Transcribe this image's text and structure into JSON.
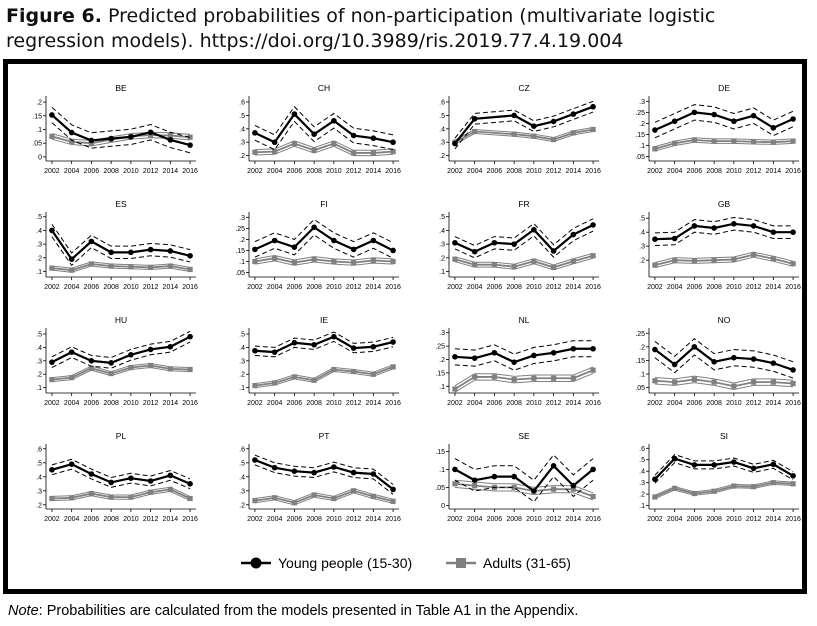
{
  "caption": {
    "label": "Figure 6.",
    "text": "Predicted probabilities of non-participation (multivariate logistic regression models). https://doi.org/10.3989/ris.2019.77.4.19.004"
  },
  "note": {
    "label": "Note",
    "text": ": Probabilities are calculated from the models presented in Table A1 in the Appendix."
  },
  "chart_data": {
    "type": "line",
    "x": [
      2002,
      2004,
      2006,
      2008,
      2010,
      2012,
      2014,
      2016
    ],
    "legend": [
      "Young people (15-30)",
      "Adults (31-65)"
    ],
    "legend_position": "bottom-center",
    "colors": {
      "young": "#000000",
      "adults": "#808080"
    },
    "panels": [
      {
        "title": "BE",
        "yticks": [
          0,
          0.05,
          0.1,
          0.15,
          0.2
        ],
        "yticklabels": [
          "0",
          ".05",
          ".1",
          ".15",
          ".2"
        ],
        "ylim": [
          -0.015,
          0.215
        ],
        "young": [
          0.153,
          0.089,
          0.06,
          0.067,
          0.073,
          0.09,
          0.062,
          0.043
        ],
        "young_ci": 0.028,
        "adults": [
          0.075,
          0.055,
          0.05,
          0.063,
          0.075,
          0.08,
          0.078,
          0.072
        ],
        "adults_ci": 0.01
      },
      {
        "title": "CH",
        "yticks": [
          0.2,
          0.3,
          0.4,
          0.5,
          0.6
        ],
        "yticklabels": [
          ".2",
          ".3",
          ".4",
          ".5",
          ".6"
        ],
        "ylim": [
          0.16,
          0.63
        ],
        "young": [
          0.37,
          0.3,
          0.51,
          0.36,
          0.46,
          0.35,
          0.33,
          0.3
        ],
        "young_ci": 0.055,
        "adults": [
          0.225,
          0.23,
          0.29,
          0.24,
          0.29,
          0.22,
          0.22,
          0.23
        ],
        "adults_ci": 0.02
      },
      {
        "title": "CZ",
        "yticks": [
          0.2,
          0.3,
          0.4,
          0.5,
          0.6
        ],
        "yticklabels": [
          ".2",
          ".3",
          ".4",
          ".5",
          ".6"
        ],
        "ylim": [
          0.16,
          0.63
        ],
        "x": [
          2002,
          2004,
          2008,
          2010,
          2012,
          2014,
          2016
        ],
        "young": [
          0.29,
          0.475,
          0.5,
          0.42,
          0.455,
          0.51,
          0.565
        ],
        "young_ci": 0.04,
        "adults": [
          0.3,
          0.38,
          0.36,
          0.345,
          0.32,
          0.37,
          0.395
        ],
        "adults_ci": 0.015
      },
      {
        "title": "DE",
        "yticks": [
          0.05,
          0.1,
          0.15,
          0.2,
          0.25,
          0.3
        ],
        "yticklabels": [
          ".05",
          ".1",
          ".15",
          ".2",
          ".25",
          ".3"
        ],
        "ylim": [
          0.03,
          0.315
        ],
        "young": [
          0.17,
          0.21,
          0.25,
          0.24,
          0.21,
          0.235,
          0.18,
          0.22
        ],
        "young_ci": 0.035,
        "adults": [
          0.085,
          0.11,
          0.125,
          0.12,
          0.12,
          0.117,
          0.115,
          0.12
        ],
        "adults_ci": 0.01
      },
      {
        "title": "ES",
        "yticks": [
          0.1,
          0.2,
          0.3,
          0.4,
          0.5
        ],
        "yticklabels": [
          ".1",
          ".2",
          ".3",
          ".4",
          ".5"
        ],
        "ylim": [
          0.06,
          0.52
        ],
        "young": [
          0.4,
          0.19,
          0.32,
          0.24,
          0.24,
          0.26,
          0.25,
          0.215
        ],
        "young_ci": 0.045,
        "adults": [
          0.125,
          0.11,
          0.155,
          0.14,
          0.135,
          0.13,
          0.14,
          0.115
        ],
        "adults_ci": 0.015
      },
      {
        "title": "FI",
        "yticks": [
          0.05,
          0.1,
          0.15,
          0.2,
          0.25,
          0.3
        ],
        "yticklabels": [
          ".05",
          ".1",
          ".15",
          ".2",
          ".25",
          ".3"
        ],
        "ylim": [
          0.03,
          0.315
        ],
        "young": [
          0.155,
          0.195,
          0.165,
          0.255,
          0.195,
          0.155,
          0.195,
          0.15
        ],
        "young_ci": 0.035,
        "adults": [
          0.1,
          0.115,
          0.095,
          0.11,
          0.1,
          0.095,
          0.105,
          0.1
        ],
        "adults_ci": 0.012
      },
      {
        "title": "FR",
        "yticks": [
          0.1,
          0.2,
          0.3,
          0.4,
          0.5
        ],
        "yticklabels": [
          ".1",
          ".2",
          ".3",
          ".4",
          ".5"
        ],
        "ylim": [
          0.06,
          0.52
        ],
        "young": [
          0.31,
          0.245,
          0.31,
          0.3,
          0.405,
          0.25,
          0.37,
          0.44
        ],
        "young_ci": 0.045,
        "adults": [
          0.19,
          0.15,
          0.15,
          0.135,
          0.175,
          0.13,
          0.175,
          0.215
        ],
        "adults_ci": 0.018
      },
      {
        "title": "GB",
        "yticks": [
          0.2,
          0.3,
          0.4,
          0.5
        ],
        "yticklabels": [
          ".2",
          ".3",
          ".4",
          ".5"
        ],
        "ylim": [
          0.08,
          0.53
        ],
        "young": [
          0.35,
          0.355,
          0.445,
          0.43,
          0.46,
          0.445,
          0.4,
          0.4
        ],
        "young_ci": 0.045,
        "adults": [
          0.165,
          0.2,
          0.195,
          0.2,
          0.205,
          0.24,
          0.21,
          0.175
        ],
        "adults_ci": 0.018
      },
      {
        "title": "HU",
        "yticks": [
          0.1,
          0.2,
          0.3,
          0.4,
          0.5
        ],
        "yticklabels": [
          ".1",
          ".2",
          ".3",
          ".4",
          ".5"
        ],
        "ylim": [
          0.06,
          0.53
        ],
        "young": [
          0.29,
          0.365,
          0.3,
          0.285,
          0.345,
          0.385,
          0.405,
          0.48
        ],
        "young_ci": 0.04,
        "adults": [
          0.16,
          0.175,
          0.245,
          0.205,
          0.25,
          0.265,
          0.24,
          0.235
        ],
        "adults_ci": 0.015
      },
      {
        "title": "IE",
        "yticks": [
          0.1,
          0.2,
          0.3,
          0.4,
          0.5
        ],
        "yticklabels": [
          ".1",
          ".2",
          ".3",
          ".4",
          ".5"
        ],
        "ylim": [
          0.06,
          0.53
        ],
        "young": [
          0.375,
          0.365,
          0.435,
          0.42,
          0.48,
          0.395,
          0.405,
          0.44
        ],
        "young_ci": 0.035,
        "adults": [
          0.115,
          0.135,
          0.18,
          0.155,
          0.235,
          0.22,
          0.2,
          0.255
        ],
        "adults_ci": 0.015
      },
      {
        "title": "NL",
        "yticks": [
          0.1,
          0.15,
          0.2,
          0.25,
          0.3
        ],
        "yticklabels": [
          ".1",
          ".15",
          ".2",
          ".25",
          ".3"
        ],
        "ylim": [
          0.075,
          0.31
        ],
        "young": [
          0.21,
          0.205,
          0.225,
          0.19,
          0.215,
          0.225,
          0.24,
          0.24
        ],
        "young_ci": 0.03,
        "adults": [
          0.09,
          0.135,
          0.135,
          0.125,
          0.13,
          0.13,
          0.13,
          0.16
        ],
        "adults_ci": 0.012
      },
      {
        "title": "NO",
        "yticks": [
          0.05,
          0.1,
          0.15,
          0.2,
          0.25
        ],
        "yticklabels": [
          ".05",
          ".1",
          ".15",
          ".2",
          ".25"
        ],
        "ylim": [
          0.03,
          0.262
        ],
        "young": [
          0.19,
          0.135,
          0.2,
          0.145,
          0.16,
          0.155,
          0.14,
          0.115
        ],
        "young_ci": 0.03,
        "adults": [
          0.075,
          0.07,
          0.08,
          0.07,
          0.055,
          0.07,
          0.07,
          0.065
        ],
        "adults_ci": 0.012
      },
      {
        "title": "PL",
        "yticks": [
          0.2,
          0.3,
          0.4,
          0.5,
          0.6
        ],
        "yticklabels": [
          ".2",
          ".3",
          ".4",
          ".5",
          ".6"
        ],
        "ylim": [
          0.17,
          0.62
        ],
        "young": [
          0.45,
          0.49,
          0.42,
          0.36,
          0.39,
          0.37,
          0.41,
          0.35
        ],
        "young_ci": 0.035,
        "adults": [
          0.245,
          0.25,
          0.28,
          0.255,
          0.255,
          0.29,
          0.31,
          0.245
        ],
        "adults_ci": 0.015
      },
      {
        "title": "PT",
        "yticks": [
          0.2,
          0.3,
          0.4,
          0.5,
          0.6
        ],
        "yticklabels": [
          ".2",
          ".3",
          ".4",
          ".5",
          ".6"
        ],
        "ylim": [
          0.17,
          0.62
        ],
        "young": [
          0.52,
          0.465,
          0.44,
          0.43,
          0.47,
          0.43,
          0.42,
          0.31
        ],
        "young_ci": 0.035,
        "adults": [
          0.23,
          0.25,
          0.215,
          0.27,
          0.245,
          0.3,
          0.26,
          0.225
        ],
        "adults_ci": 0.015
      },
      {
        "title": "SE",
        "yticks": [
          0,
          0.05,
          0.1,
          0.15
        ],
        "yticklabels": [
          "0",
          ".05",
          ".1",
          ".15"
        ],
        "ylim": [
          -0.01,
          0.165
        ],
        "young": [
          0.1,
          0.07,
          0.08,
          0.08,
          0.04,
          0.11,
          0.055,
          0.1
        ],
        "young_ci": 0.03,
        "adults": [
          0.06,
          0.055,
          0.05,
          0.05,
          0.04,
          0.045,
          0.045,
          0.025
        ],
        "adults_ci": 0.01
      },
      {
        "title": "SI",
        "yticks": [
          0.1,
          0.2,
          0.3,
          0.4,
          0.5,
          0.6
        ],
        "yticklabels": [
          ".1",
          ".2",
          ".3",
          ".4",
          ".5",
          ".6"
        ],
        "ylim": [
          0.07,
          0.62
        ],
        "young": [
          0.33,
          0.51,
          0.455,
          0.455,
          0.48,
          0.425,
          0.46,
          0.36
        ],
        "young_ci": 0.035,
        "adults": [
          0.175,
          0.25,
          0.205,
          0.225,
          0.27,
          0.265,
          0.3,
          0.29
        ],
        "adults_ci": 0.015
      }
    ]
  }
}
